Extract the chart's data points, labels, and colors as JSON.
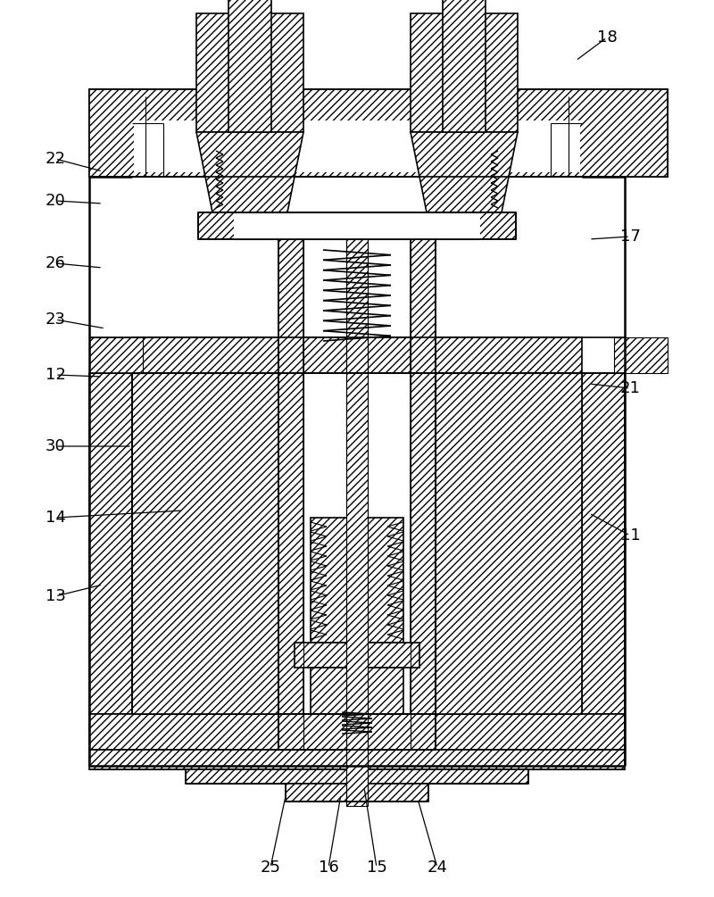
{
  "background_color": "#ffffff",
  "line_color": "#000000",
  "fig_width": 8.0,
  "fig_height": 10.05,
  "lw_thin": 0.8,
  "lw_med": 1.2,
  "lw_thick": 1.8,
  "hatch_dense": "////",
  "hatch_sparse": "//",
  "labels_data": [
    [
      "18",
      680,
      42,
      645,
      68
    ],
    [
      "22",
      62,
      178,
      115,
      192
    ],
    [
      "20",
      62,
      225,
      115,
      228
    ],
    [
      "26",
      62,
      295,
      115,
      300
    ],
    [
      "23",
      62,
      358,
      118,
      368
    ],
    [
      "12",
      62,
      420,
      115,
      422
    ],
    [
      "30",
      62,
      500,
      148,
      500
    ],
    [
      "14",
      62,
      580,
      205,
      572
    ],
    [
      "13",
      62,
      668,
      115,
      655
    ],
    [
      "17",
      706,
      265,
      660,
      268
    ],
    [
      "21",
      706,
      435,
      660,
      430
    ],
    [
      "11",
      706,
      600,
      660,
      575
    ],
    [
      "25",
      303,
      972,
      320,
      892
    ],
    [
      "16",
      368,
      972,
      382,
      890
    ],
    [
      "15",
      422,
      972,
      408,
      882
    ],
    [
      "24",
      490,
      972,
      468,
      895
    ]
  ]
}
